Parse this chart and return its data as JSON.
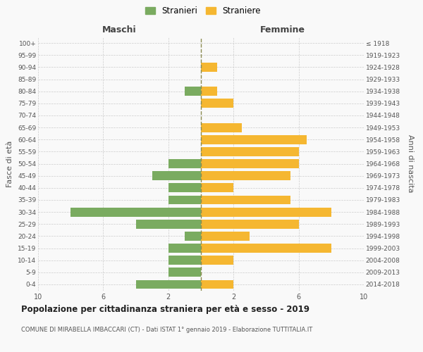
{
  "age_groups": [
    "100+",
    "95-99",
    "90-94",
    "85-89",
    "80-84",
    "75-79",
    "70-74",
    "65-69",
    "60-64",
    "55-59",
    "50-54",
    "45-49",
    "40-44",
    "35-39",
    "30-34",
    "25-29",
    "20-24",
    "15-19",
    "10-14",
    "5-9",
    "0-4"
  ],
  "birth_years": [
    "≤ 1918",
    "1919-1923",
    "1924-1928",
    "1929-1933",
    "1934-1938",
    "1939-1943",
    "1944-1948",
    "1949-1953",
    "1954-1958",
    "1959-1963",
    "1964-1968",
    "1969-1973",
    "1974-1978",
    "1979-1983",
    "1984-1988",
    "1989-1993",
    "1994-1998",
    "1999-2003",
    "2004-2008",
    "2009-2013",
    "2014-2018"
  ],
  "males": [
    0,
    0,
    0,
    0,
    1,
    0,
    0,
    0,
    0,
    0,
    2,
    3,
    2,
    2,
    8,
    4,
    1,
    2,
    2,
    2,
    4
  ],
  "females": [
    0,
    0,
    1,
    0,
    1,
    2,
    0,
    2.5,
    6.5,
    6,
    6,
    5.5,
    2,
    5.5,
    8,
    6,
    3,
    8,
    2,
    0,
    2
  ],
  "male_color": "#7aab60",
  "female_color": "#f5b731",
  "dashed_line_color": "#8b8b50",
  "grid_color": "#cccccc",
  "title": "Popolazione per cittadinanza straniera per età e sesso - 2019",
  "subtitle": "COMUNE DI MIRABELLA IMBACCARI (CT) - Dati ISTAT 1° gennaio 2019 - Elaborazione TUTTITALIA.IT",
  "ylabel_left": "Fasce di età",
  "ylabel_right": "Anni di nascita",
  "header_left": "Maschi",
  "header_right": "Femmine",
  "legend_males": "Stranieri",
  "legend_females": "Straniere",
  "xlim": 10,
  "background_color": "#f9f9f9",
  "bar_height": 0.75
}
